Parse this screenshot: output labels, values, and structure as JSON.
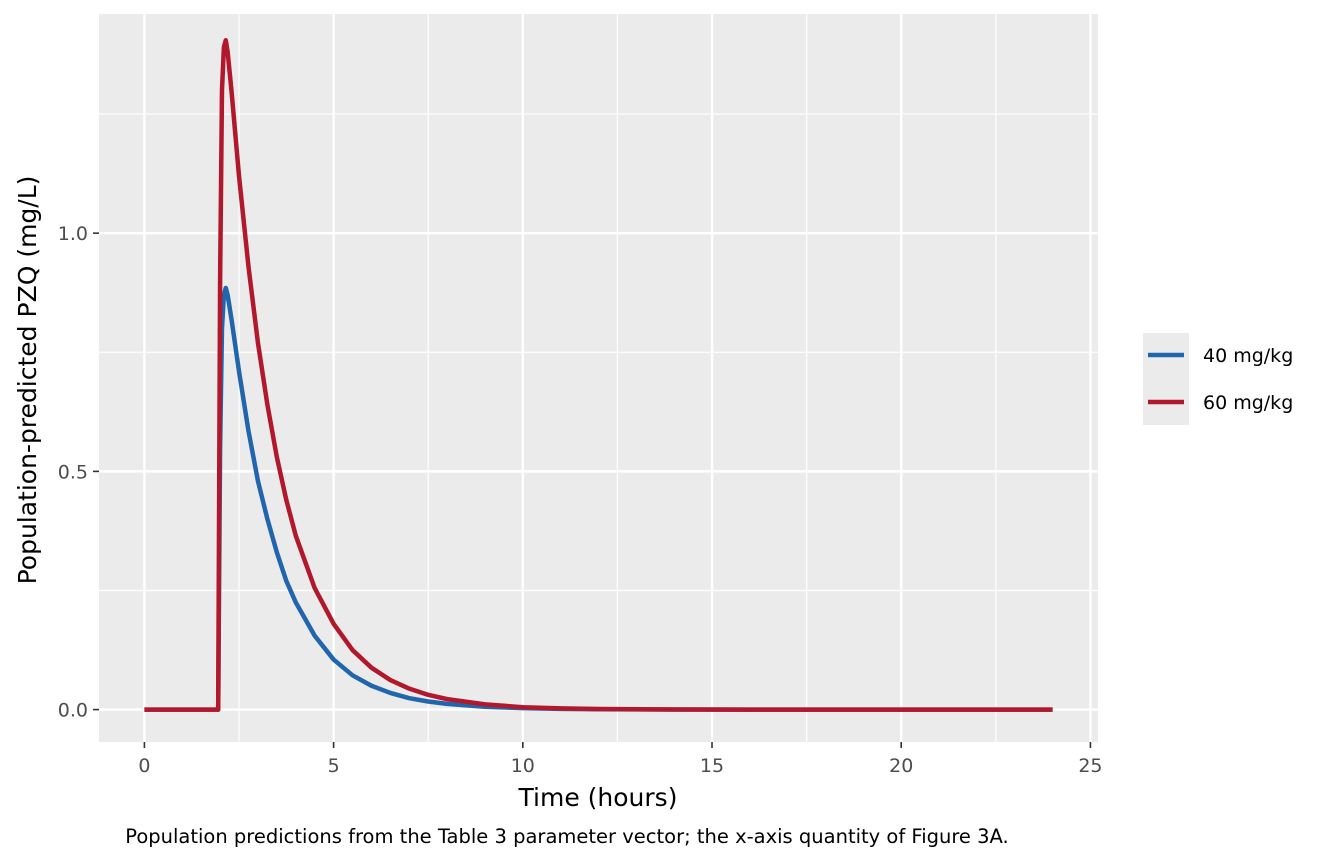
{
  "chart_data": {
    "type": "line",
    "xlabel": "Time (hours)",
    "ylabel": "Population-predicted PZQ (mg/L)",
    "caption": "Population predictions from the Table 3 parameter vector; the x-axis quantity of Figure 3A.",
    "xlim": [
      -1.2,
      25.2
    ],
    "ylim": [
      -0.068,
      1.46
    ],
    "x_ticks": [
      0,
      5,
      10,
      15,
      20,
      25
    ],
    "x_tick_labels": [
      "0",
      "5",
      "10",
      "15",
      "20",
      "25"
    ],
    "y_ticks": [
      0.0,
      0.5,
      1.0
    ],
    "y_tick_labels": [
      "0.0",
      "0.5",
      "1.0"
    ],
    "grid": true,
    "legend_position": "right",
    "series": [
      {
        "name": "40 mg/kg",
        "color": "#2166ac",
        "x": [
          0,
          1.95,
          2.0,
          2.05,
          2.1,
          2.15,
          2.2,
          2.3,
          2.5,
          2.75,
          3,
          3.25,
          3.5,
          3.75,
          4,
          4.5,
          5,
          5.5,
          6,
          6.5,
          7,
          7.5,
          8,
          9,
          10,
          11,
          12,
          14,
          16,
          18,
          20,
          22,
          24
        ],
        "y": [
          0,
          0,
          0.55,
          0.8,
          0.87,
          0.885,
          0.87,
          0.82,
          0.71,
          0.585,
          0.48,
          0.4,
          0.33,
          0.27,
          0.225,
          0.155,
          0.105,
          0.072,
          0.05,
          0.035,
          0.024,
          0.017,
          0.012,
          0.006,
          0.003,
          0.0015,
          0.0008,
          0.0002,
          0,
          0,
          0,
          0,
          0
        ]
      },
      {
        "name": "60 mg/kg",
        "color": "#b2182b",
        "x": [
          0,
          1.95,
          2.0,
          2.05,
          2.1,
          2.15,
          2.2,
          2.3,
          2.5,
          2.75,
          3,
          3.25,
          3.5,
          3.75,
          4,
          4.5,
          5,
          5.5,
          6,
          6.5,
          7,
          7.5,
          8,
          9,
          10,
          11,
          12,
          14,
          16,
          18,
          20,
          22,
          24
        ],
        "y": [
          0,
          0,
          0.9,
          1.3,
          1.39,
          1.405,
          1.38,
          1.3,
          1.12,
          0.93,
          0.77,
          0.64,
          0.53,
          0.44,
          0.365,
          0.255,
          0.18,
          0.125,
          0.088,
          0.062,
          0.044,
          0.031,
          0.022,
          0.011,
          0.005,
          0.0025,
          0.0012,
          0.0003,
          0,
          0,
          0,
          0,
          0
        ]
      }
    ]
  }
}
